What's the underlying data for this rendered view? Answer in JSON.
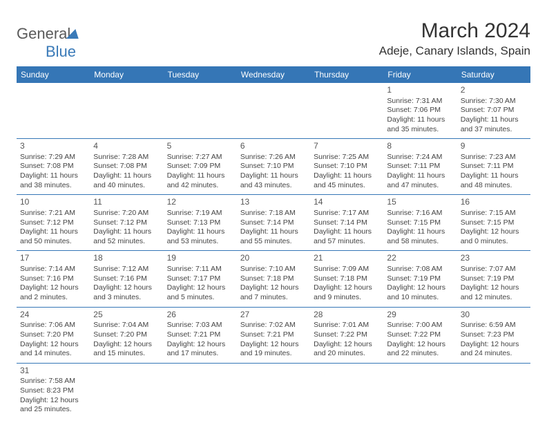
{
  "brand": {
    "part1": "General",
    "part2": "Blue"
  },
  "title": "March 2024",
  "location": "Adeje, Canary Islands, Spain",
  "colors": {
    "header_bg": "#3576b6",
    "header_text": "#ffffff",
    "brand_blue": "#3a7ab8"
  },
  "day_headers": [
    "Sunday",
    "Monday",
    "Tuesday",
    "Wednesday",
    "Thursday",
    "Friday",
    "Saturday"
  ],
  "weeks": [
    [
      null,
      null,
      null,
      null,
      null,
      {
        "n": "1",
        "sunrise": "Sunrise: 7:31 AM",
        "sunset": "Sunset: 7:06 PM",
        "daylight": "Daylight: 11 hours and 35 minutes."
      },
      {
        "n": "2",
        "sunrise": "Sunrise: 7:30 AM",
        "sunset": "Sunset: 7:07 PM",
        "daylight": "Daylight: 11 hours and 37 minutes."
      }
    ],
    [
      {
        "n": "3",
        "sunrise": "Sunrise: 7:29 AM",
        "sunset": "Sunset: 7:08 PM",
        "daylight": "Daylight: 11 hours and 38 minutes."
      },
      {
        "n": "4",
        "sunrise": "Sunrise: 7:28 AM",
        "sunset": "Sunset: 7:08 PM",
        "daylight": "Daylight: 11 hours and 40 minutes."
      },
      {
        "n": "5",
        "sunrise": "Sunrise: 7:27 AM",
        "sunset": "Sunset: 7:09 PM",
        "daylight": "Daylight: 11 hours and 42 minutes."
      },
      {
        "n": "6",
        "sunrise": "Sunrise: 7:26 AM",
        "sunset": "Sunset: 7:10 PM",
        "daylight": "Daylight: 11 hours and 43 minutes."
      },
      {
        "n": "7",
        "sunrise": "Sunrise: 7:25 AM",
        "sunset": "Sunset: 7:10 PM",
        "daylight": "Daylight: 11 hours and 45 minutes."
      },
      {
        "n": "8",
        "sunrise": "Sunrise: 7:24 AM",
        "sunset": "Sunset: 7:11 PM",
        "daylight": "Daylight: 11 hours and 47 minutes."
      },
      {
        "n": "9",
        "sunrise": "Sunrise: 7:23 AM",
        "sunset": "Sunset: 7:11 PM",
        "daylight": "Daylight: 11 hours and 48 minutes."
      }
    ],
    [
      {
        "n": "10",
        "sunrise": "Sunrise: 7:21 AM",
        "sunset": "Sunset: 7:12 PM",
        "daylight": "Daylight: 11 hours and 50 minutes."
      },
      {
        "n": "11",
        "sunrise": "Sunrise: 7:20 AM",
        "sunset": "Sunset: 7:12 PM",
        "daylight": "Daylight: 11 hours and 52 minutes."
      },
      {
        "n": "12",
        "sunrise": "Sunrise: 7:19 AM",
        "sunset": "Sunset: 7:13 PM",
        "daylight": "Daylight: 11 hours and 53 minutes."
      },
      {
        "n": "13",
        "sunrise": "Sunrise: 7:18 AM",
        "sunset": "Sunset: 7:14 PM",
        "daylight": "Daylight: 11 hours and 55 minutes."
      },
      {
        "n": "14",
        "sunrise": "Sunrise: 7:17 AM",
        "sunset": "Sunset: 7:14 PM",
        "daylight": "Daylight: 11 hours and 57 minutes."
      },
      {
        "n": "15",
        "sunrise": "Sunrise: 7:16 AM",
        "sunset": "Sunset: 7:15 PM",
        "daylight": "Daylight: 11 hours and 58 minutes."
      },
      {
        "n": "16",
        "sunrise": "Sunrise: 7:15 AM",
        "sunset": "Sunset: 7:15 PM",
        "daylight": "Daylight: 12 hours and 0 minutes."
      }
    ],
    [
      {
        "n": "17",
        "sunrise": "Sunrise: 7:14 AM",
        "sunset": "Sunset: 7:16 PM",
        "daylight": "Daylight: 12 hours and 2 minutes."
      },
      {
        "n": "18",
        "sunrise": "Sunrise: 7:12 AM",
        "sunset": "Sunset: 7:16 PM",
        "daylight": "Daylight: 12 hours and 3 minutes."
      },
      {
        "n": "19",
        "sunrise": "Sunrise: 7:11 AM",
        "sunset": "Sunset: 7:17 PM",
        "daylight": "Daylight: 12 hours and 5 minutes."
      },
      {
        "n": "20",
        "sunrise": "Sunrise: 7:10 AM",
        "sunset": "Sunset: 7:18 PM",
        "daylight": "Daylight: 12 hours and 7 minutes."
      },
      {
        "n": "21",
        "sunrise": "Sunrise: 7:09 AM",
        "sunset": "Sunset: 7:18 PM",
        "daylight": "Daylight: 12 hours and 9 minutes."
      },
      {
        "n": "22",
        "sunrise": "Sunrise: 7:08 AM",
        "sunset": "Sunset: 7:19 PM",
        "daylight": "Daylight: 12 hours and 10 minutes."
      },
      {
        "n": "23",
        "sunrise": "Sunrise: 7:07 AM",
        "sunset": "Sunset: 7:19 PM",
        "daylight": "Daylight: 12 hours and 12 minutes."
      }
    ],
    [
      {
        "n": "24",
        "sunrise": "Sunrise: 7:06 AM",
        "sunset": "Sunset: 7:20 PM",
        "daylight": "Daylight: 12 hours and 14 minutes."
      },
      {
        "n": "25",
        "sunrise": "Sunrise: 7:04 AM",
        "sunset": "Sunset: 7:20 PM",
        "daylight": "Daylight: 12 hours and 15 minutes."
      },
      {
        "n": "26",
        "sunrise": "Sunrise: 7:03 AM",
        "sunset": "Sunset: 7:21 PM",
        "daylight": "Daylight: 12 hours and 17 minutes."
      },
      {
        "n": "27",
        "sunrise": "Sunrise: 7:02 AM",
        "sunset": "Sunset: 7:21 PM",
        "daylight": "Daylight: 12 hours and 19 minutes."
      },
      {
        "n": "28",
        "sunrise": "Sunrise: 7:01 AM",
        "sunset": "Sunset: 7:22 PM",
        "daylight": "Daylight: 12 hours and 20 minutes."
      },
      {
        "n": "29",
        "sunrise": "Sunrise: 7:00 AM",
        "sunset": "Sunset: 7:22 PM",
        "daylight": "Daylight: 12 hours and 22 minutes."
      },
      {
        "n": "30",
        "sunrise": "Sunrise: 6:59 AM",
        "sunset": "Sunset: 7:23 PM",
        "daylight": "Daylight: 12 hours and 24 minutes."
      }
    ],
    [
      {
        "n": "31",
        "sunrise": "Sunrise: 7:58 AM",
        "sunset": "Sunset: 8:23 PM",
        "daylight": "Daylight: 12 hours and 25 minutes."
      },
      null,
      null,
      null,
      null,
      null,
      null
    ]
  ]
}
